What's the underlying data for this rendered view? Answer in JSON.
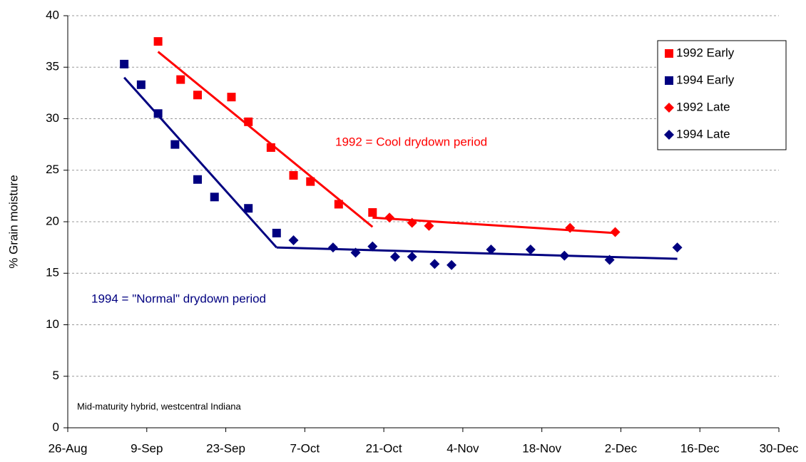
{
  "chart_data": {
    "type": "scatter",
    "y_label": "% Grain moisture",
    "annotations": [
      "1992 = Cool drydown period",
      "1994 = \"Normal\" drydown period",
      "Mid-maturity hybrid, westcentral Indiana"
    ],
    "xlim": [
      238,
      364
    ],
    "xticks": [
      {
        "value": 238,
        "label": "26-Aug"
      },
      {
        "value": 252,
        "label": "9-Sep"
      },
      {
        "value": 266,
        "label": "23-Sep"
      },
      {
        "value": 280,
        "label": "7-Oct"
      },
      {
        "value": 294,
        "label": "21-Oct"
      },
      {
        "value": 308,
        "label": "4-Nov"
      },
      {
        "value": 322,
        "label": "18-Nov"
      },
      {
        "value": 336,
        "label": "2-Dec"
      },
      {
        "value": 350,
        "label": "16-Dec"
      },
      {
        "value": 364,
        "label": "30-Dec"
      }
    ],
    "ylim": [
      0,
      40
    ],
    "yticks": [
      0,
      5,
      10,
      15,
      20,
      25,
      30,
      35,
      40
    ],
    "grid": true,
    "legend": "upper right",
    "series": [
      {
        "name": "1992 Early",
        "color": "#ff0000",
        "marker": "square",
        "x": [
          254,
          258,
          261,
          267,
          270,
          274,
          278,
          281,
          286,
          292
        ],
        "values": [
          37.5,
          33.8,
          32.3,
          32.1,
          29.7,
          27.2,
          24.5,
          23.9,
          21.7,
          20.9
        ]
      },
      {
        "name": "1994 Early",
        "color": "#000080",
        "marker": "square",
        "x": [
          248,
          251,
          254,
          257,
          261,
          264,
          270,
          275
        ],
        "values": [
          35.3,
          33.3,
          30.5,
          27.5,
          24.1,
          22.4,
          21.3,
          18.9
        ]
      },
      {
        "name": "1992 Late",
        "color": "#ff0000",
        "marker": "diamond",
        "x": [
          295,
          299,
          302,
          327,
          335
        ],
        "values": [
          20.4,
          19.9,
          19.6,
          19.4,
          19.0
        ]
      },
      {
        "name": "1994 Late",
        "color": "#000080",
        "marker": "diamond",
        "x": [
          278,
          285,
          289,
          292,
          296,
          299,
          303,
          306,
          313,
          320,
          326,
          334,
          346
        ],
        "values": [
          18.2,
          17.5,
          17.0,
          17.6,
          16.6,
          16.6,
          15.9,
          15.8,
          17.3,
          17.3,
          16.7,
          16.3,
          17.5
        ]
      }
    ],
    "trend_lines": [
      {
        "color": "#ff0000",
        "x": [
          254,
          292
        ],
        "values": [
          36.5,
          19.5
        ]
      },
      {
        "color": "#ff0000",
        "x": [
          292,
          335
        ],
        "values": [
          20.4,
          18.9
        ]
      },
      {
        "color": "#000080",
        "x": [
          248,
          275
        ],
        "values": [
          34.0,
          17.5
        ]
      },
      {
        "color": "#000080",
        "x": [
          275,
          346
        ],
        "values": [
          17.5,
          16.4
        ]
      }
    ]
  }
}
